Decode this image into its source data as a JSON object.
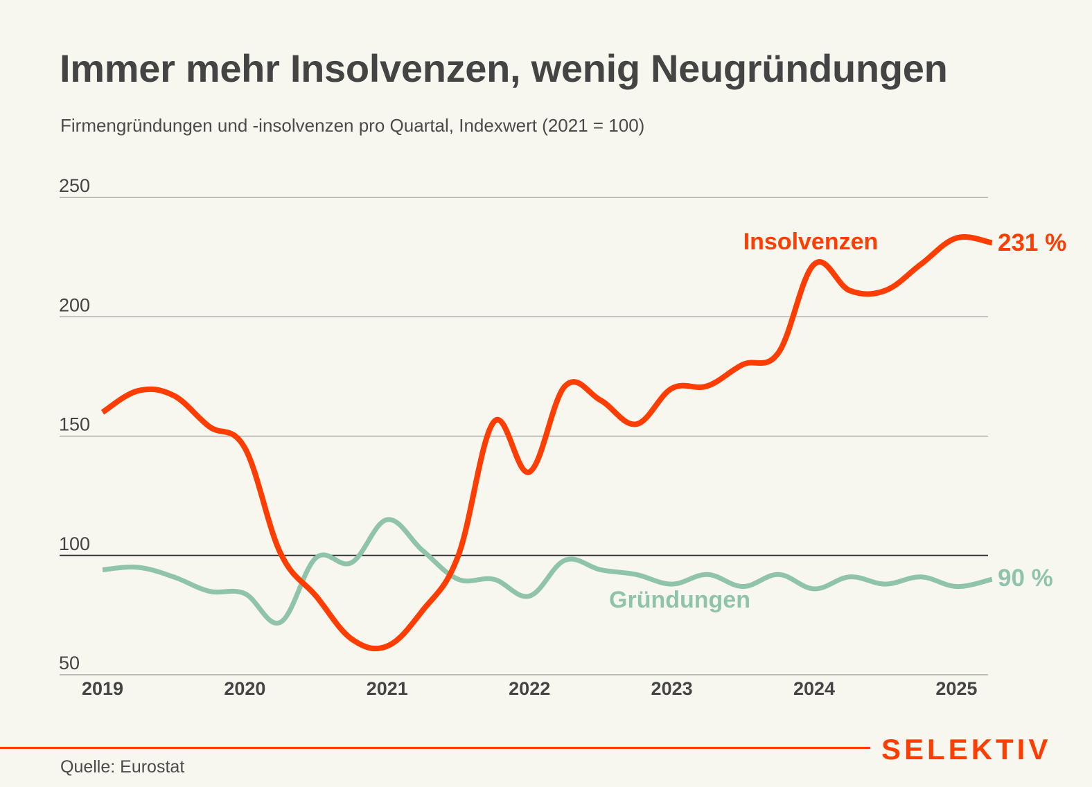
{
  "header": {
    "title": "Immer mehr Insolvenzen, wenig Neugründungen",
    "subtitle": "Firmengründungen und -insolvenzen pro Quartal, Indexwert (2021 = 100)"
  },
  "footer": {
    "source": "Quelle: Eurostat",
    "brand": "SELEKTIV"
  },
  "colors": {
    "background": "#f8f7ef",
    "insolvenzen": "#ff3d00",
    "gruendungen": "#8fc4aa",
    "text": "#444444",
    "grid": "#9a9a9a",
    "reference_line": "#333333",
    "brand": "#ff3d00"
  },
  "chart_data": {
    "type": "line",
    "title": "Immer mehr Insolvenzen, wenig Neugründungen",
    "subtitle": "Firmengründungen und -insolvenzen pro Quartal, Indexwert (2021 = 100)",
    "xlabel": "",
    "ylabel": "",
    "ylim": [
      50,
      250
    ],
    "yticks": [
      50,
      100,
      150,
      200,
      250
    ],
    "reference_value": 100,
    "grid": true,
    "x": [
      "2019Q1",
      "2019Q2",
      "2019Q3",
      "2019Q4",
      "2020Q1",
      "2020Q2",
      "2020Q3",
      "2020Q4",
      "2021Q1",
      "2021Q2",
      "2021Q3",
      "2021Q4",
      "2022Q1",
      "2022Q2",
      "2022Q3",
      "2022Q4",
      "2023Q1",
      "2023Q2",
      "2023Q3",
      "2023Q4",
      "2024Q1",
      "2024Q2",
      "2024Q3",
      "2024Q4",
      "2025Q1",
      "2025Q2"
    ],
    "xtick_labels": [
      "2019",
      "2020",
      "2021",
      "2022",
      "2023",
      "2024",
      "2025"
    ],
    "series": [
      {
        "name": "Insolvenzen",
        "label": "Insolvenzen",
        "end_label": "231 %",
        "color": "#ff3d00",
        "values": [
          160,
          169,
          167,
          154,
          145,
          101,
          83,
          65,
          62,
          77,
          100,
          156,
          135,
          171,
          165,
          155,
          170,
          171,
          180,
          185,
          222,
          211,
          211,
          222,
          233,
          231
        ]
      },
      {
        "name": "Gründungen",
        "label": "Gründungen",
        "end_label": "90 %",
        "color": "#8fc4aa",
        "values": [
          94,
          95,
          91,
          85,
          84,
          72,
          99,
          97,
          115,
          102,
          90,
          90,
          83,
          98,
          94,
          92,
          88,
          92,
          87,
          92,
          86,
          91,
          88,
          91,
          87,
          90
        ]
      }
    ],
    "legend": "inline-labels"
  }
}
